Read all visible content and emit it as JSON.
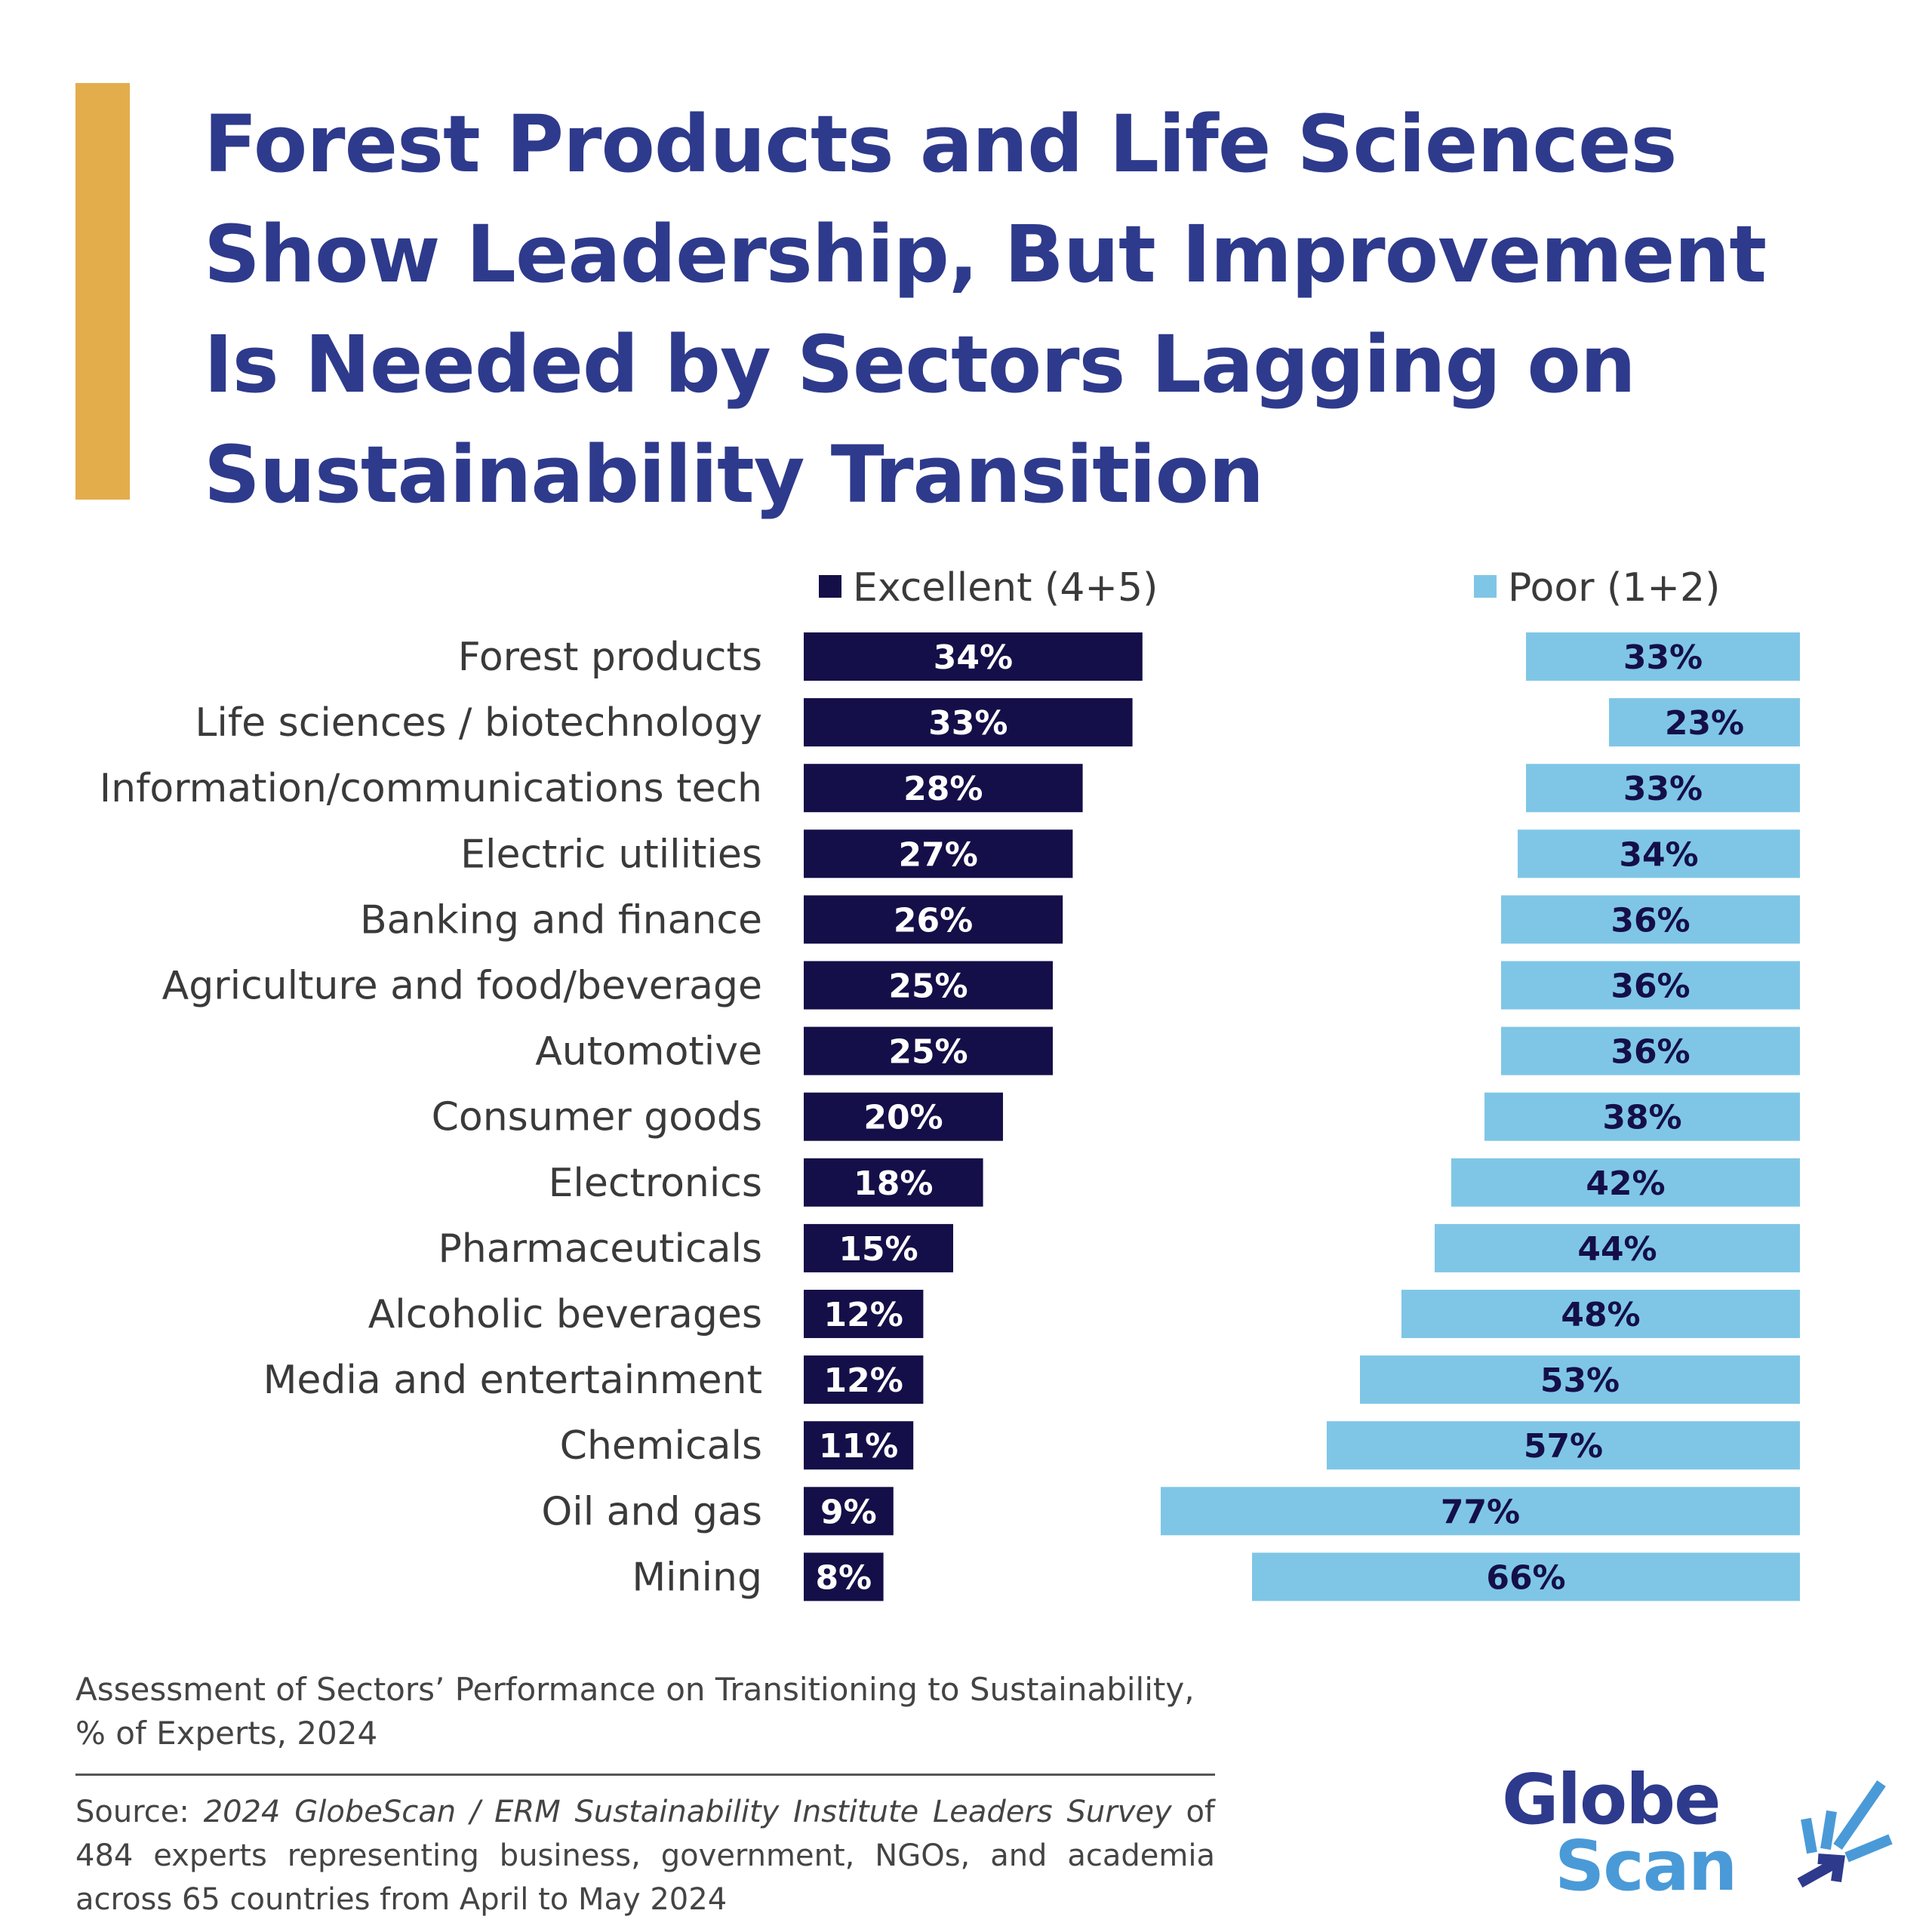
{
  "title": "Forest Products and Life Sciences Show Leadership, But Improvement Is Needed by Sectors Lagging on Sustainability Transition",
  "subtitle": "Assessment of Sectors’ Performance on Transitioning to Sustainability, % of Experts, 2024",
  "source": {
    "prefix": "Source: ",
    "italic": "2024 GlobeScan / ERM Sustainability Institute Leaders Survey",
    "rest": " of 484 experts representing business, government, NGOs, and academia across 65 countries from April to May 2024"
  },
  "logo": {
    "line1": "Globe",
    "line2": "Scan"
  },
  "colors": {
    "excellent": "#140F48",
    "poor": "#7FC6E6",
    "accent": "#E3AD4C",
    "title": "#2E3A8C"
  },
  "chart_data": {
    "type": "bar",
    "orientation": "horizontal",
    "title": "Forest Products and Life Sciences Show Leadership, But Improvement Is Needed by Sectors Lagging on Sustainability Transition",
    "legend_placement": "top",
    "grid": false,
    "unit": "%",
    "categories": [
      "Forest products",
      "Life sciences / biotechnology",
      "Information/communications tech",
      "Electric utilities",
      "Banking and finance",
      "Agriculture and food/beverage",
      "Automotive",
      "Consumer goods",
      "Electronics",
      "Pharmaceuticals",
      "Alcoholic beverages",
      "Media and entertainment",
      "Chemicals",
      "Oil and gas",
      "Mining"
    ],
    "series": [
      {
        "name": "Excellent (4+5)",
        "color": "#140F48",
        "values": [
          34,
          33,
          28,
          27,
          26,
          25,
          25,
          20,
          18,
          15,
          12,
          12,
          11,
          9,
          8
        ]
      },
      {
        "name": "Poor (1+2)",
        "color": "#7FC6E6",
        "values": [
          33,
          23,
          33,
          34,
          36,
          36,
          36,
          38,
          42,
          44,
          48,
          53,
          57,
          77,
          66
        ]
      }
    ]
  }
}
